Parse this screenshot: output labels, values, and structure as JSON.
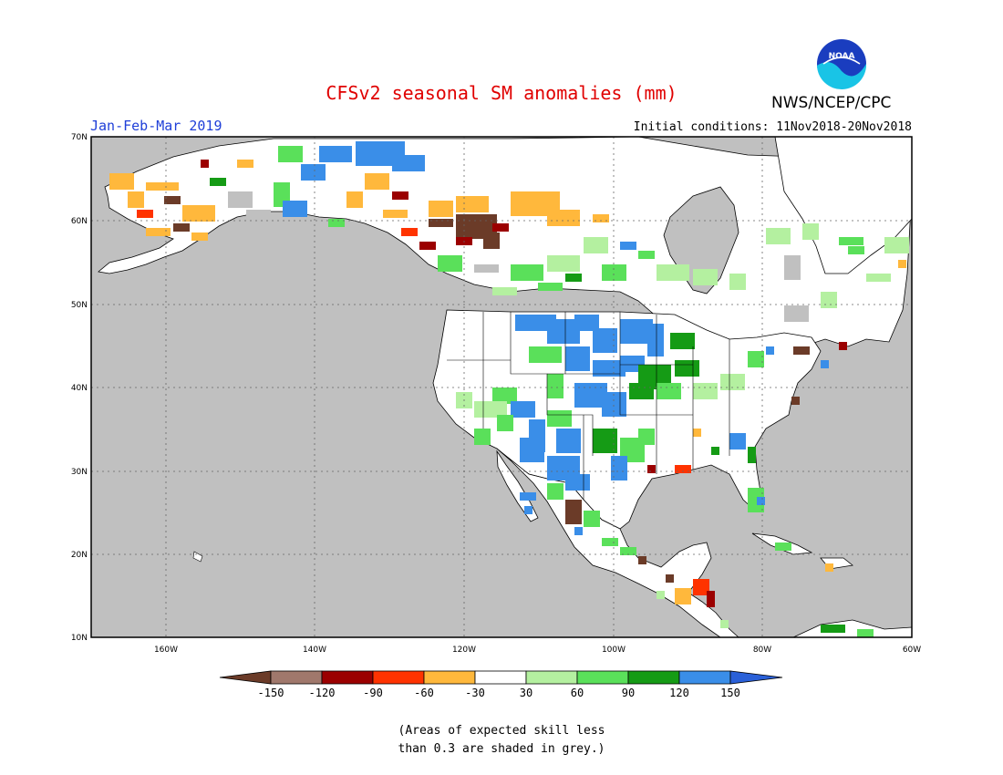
{
  "header": {
    "title": "CFSv2 seasonal SM anomalies (mm)",
    "agency": "NWS/NCEP/CPC",
    "season": "Jan-Feb-Mar 2019",
    "initial_conditions": "Initial conditions: 11Nov2018-20Nov2018",
    "logo_text": "NOAA"
  },
  "map": {
    "lon_range": [
      -170,
      -60
    ],
    "lat_range": [
      10,
      70
    ],
    "lat_labels": [
      "70N",
      "60N",
      "50N",
      "40N",
      "30N",
      "20N",
      "10N"
    ],
    "lon_labels": [
      "160W",
      "140W",
      "120W",
      "100W",
      "80W",
      "60W"
    ],
    "grid": "dotted",
    "ocean_color": "#c0c0c0",
    "low_skill_color": "#c0c0c0",
    "anomaly_patches": [
      {
        "region": "Alaska",
        "class": "mixed dry/wet, mostly white"
      },
      {
        "region": "Western Canada",
        "class": "dry (-150 to -60)"
      },
      {
        "region": "Central/Southern Plains",
        "class": "wet (90 to 150)"
      },
      {
        "region": "Southwest US / Mexico",
        "class": "wet (60 to 150)"
      },
      {
        "region": "Eastern Canada / Northeast",
        "class": "near normal, low skill grey"
      }
    ]
  },
  "legend": {
    "labels": [
      "-150",
      "-120",
      "-90",
      "-60",
      "-30",
      "30",
      "60",
      "90",
      "120",
      "150"
    ],
    "colors": [
      "#6b3b28",
      "#a0786c",
      "#9b0000",
      "#ff3300",
      "#ffb83c",
      "#ffffff",
      "#b4f0a0",
      "#5ae05a",
      "#159b15",
      "#3a8ee8",
      "#2a60d8"
    ]
  },
  "note": {
    "line1": "(Areas of expected skill less",
    "line2": "than 0.3 are shaded in grey.)"
  }
}
